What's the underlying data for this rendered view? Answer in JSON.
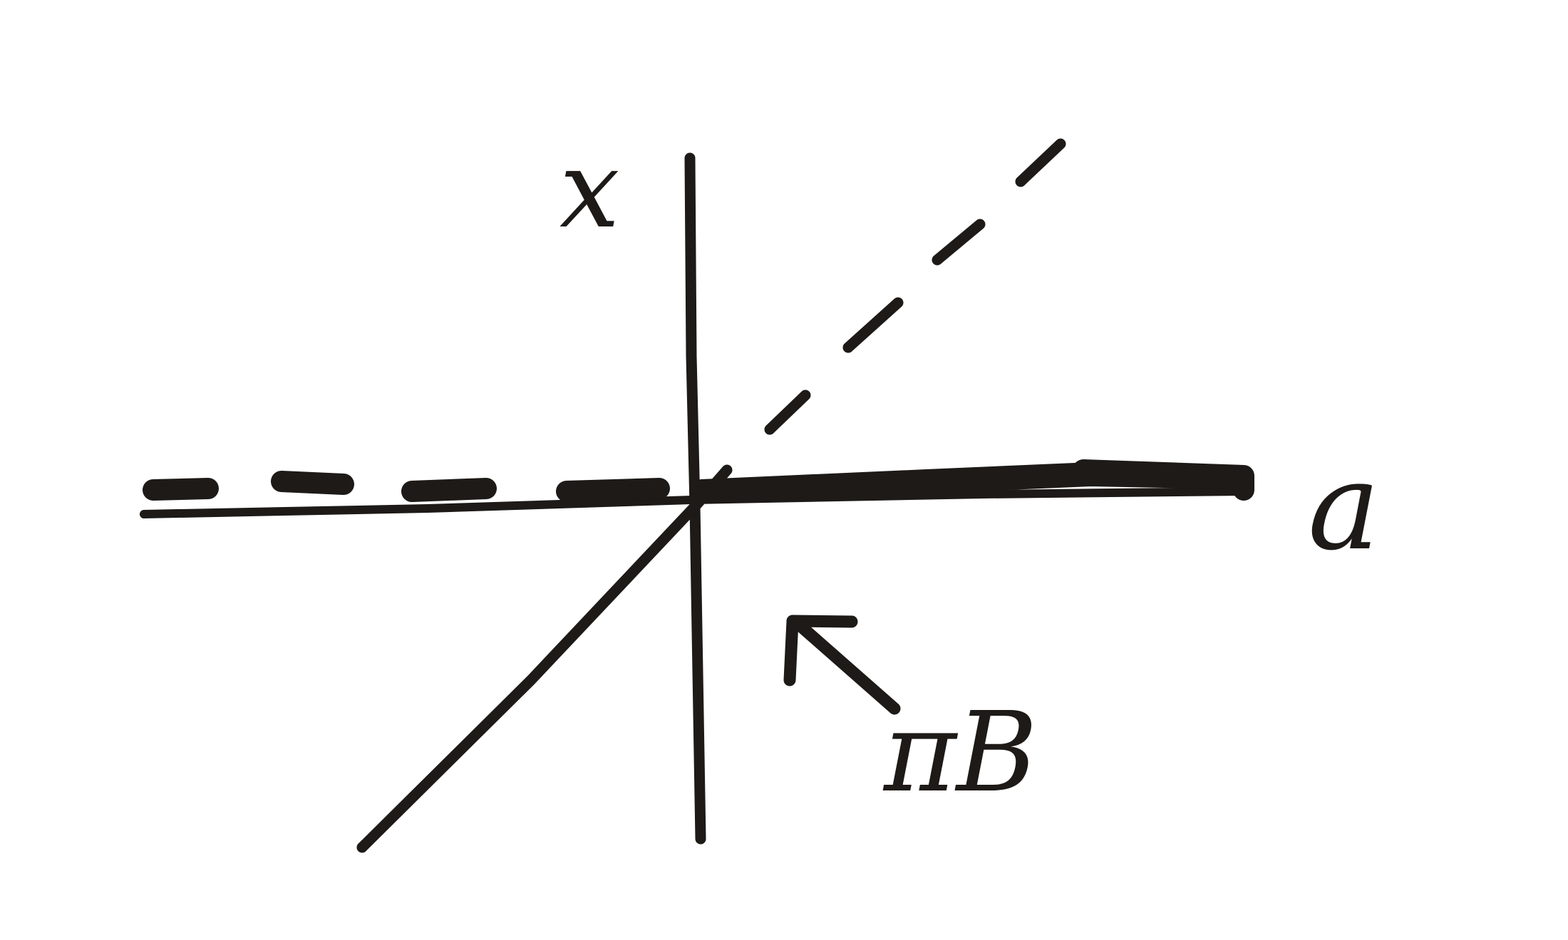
{
  "diagram": {
    "vertical_axis_label": "x",
    "horizontal_axis_label": "a",
    "pointer_label": "πB"
  },
  "colors": {
    "ink": "#1d1a17",
    "paper": "#ffffff"
  }
}
